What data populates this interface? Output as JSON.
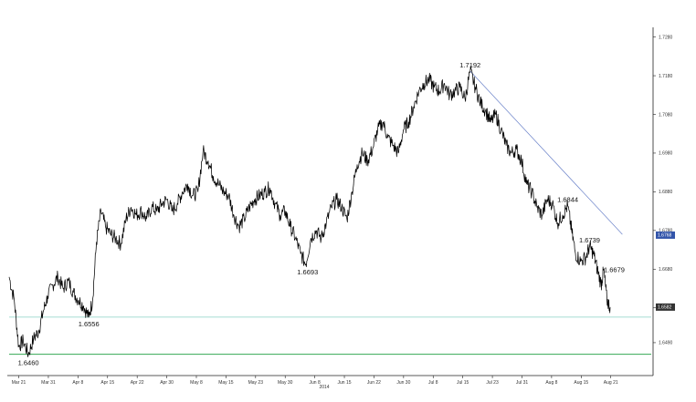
{
  "chart_data": {
    "type": "line",
    "title": "",
    "xlabel": "",
    "ylabel": "",
    "year_label": "2014",
    "x_tick_labels": [
      "Mar 21",
      "Mar 31",
      "Apr 8",
      "Apr 15",
      "Apr 22",
      "Apr 30",
      "May 8",
      "May 15",
      "May 23",
      "May 30",
      "Jun 8",
      "Jun 15",
      "Jun 22",
      "Jun 30",
      "Jul 8",
      "Jul 15",
      "Jul 23",
      "Jul 31",
      "Aug 8",
      "Aug 15",
      "Aug 21"
    ],
    "y_ticks": [
      1.649,
      1.658,
      1.668,
      1.678,
      1.688,
      1.698,
      1.708,
      1.718,
      1.728
    ],
    "y_tick_labels": [
      "1.6490",
      "1.6580",
      "1.6680",
      "1.6780",
      "1.6880",
      "1.6980",
      "1.7080",
      "1.7180",
      "1.7280"
    ],
    "ylim": [
      1.6405,
      1.7305
    ],
    "y_axis_side": "right",
    "grid": false,
    "series": [
      {
        "values": [
          [
            0,
            1.666
          ],
          [
            0.8,
            1.66
          ],
          [
            1.5,
            1.648
          ],
          [
            2.2,
            1.6495
          ],
          [
            3,
            1.646
          ],
          [
            3.8,
            1.65
          ],
          [
            4.6,
            1.652
          ],
          [
            5.3,
            1.657
          ],
          [
            6,
            1.661
          ],
          [
            6.8,
            1.664
          ],
          [
            7.6,
            1.666
          ],
          [
            8.4,
            1.663
          ],
          [
            9.2,
            1.665
          ],
          [
            10,
            1.662
          ],
          [
            10.8,
            1.66
          ],
          [
            11.6,
            1.6585
          ],
          [
            12.4,
            1.6556
          ],
          [
            13,
            1.66
          ],
          [
            13.6,
            1.675
          ],
          [
            14.3,
            1.683
          ],
          [
            15,
            1.679
          ],
          [
            15.8,
            1.677
          ],
          [
            16.6,
            1.676
          ],
          [
            17.4,
            1.6745
          ],
          [
            18.2,
            1.681
          ],
          [
            19,
            1.684
          ],
          [
            19.8,
            1.682
          ],
          [
            20.6,
            1.683
          ],
          [
            21.4,
            1.681
          ],
          [
            22.2,
            1.684
          ],
          [
            23,
            1.683
          ],
          [
            23.8,
            1.685
          ],
          [
            24.6,
            1.686
          ],
          [
            25.4,
            1.683
          ],
          [
            26.2,
            1.685
          ],
          [
            27,
            1.688
          ],
          [
            27.8,
            1.69
          ],
          [
            28.6,
            1.687
          ],
          [
            29.4,
            1.688
          ],
          [
            30.2,
            1.6985
          ],
          [
            31,
            1.696
          ],
          [
            31.8,
            1.692
          ],
          [
            32.6,
            1.69
          ],
          [
            33.4,
            1.688
          ],
          [
            34.2,
            1.687
          ],
          [
            35,
            1.682
          ],
          [
            35.8,
            1.679
          ],
          [
            36.6,
            1.681
          ],
          [
            37.4,
            1.684
          ],
          [
            38.2,
            1.686
          ],
          [
            39,
            1.687
          ],
          [
            39.8,
            1.688
          ],
          [
            40.6,
            1.689
          ],
          [
            41.4,
            1.685
          ],
          [
            42.2,
            1.682
          ],
          [
            43,
            1.683
          ],
          [
            43.8,
            1.679
          ],
          [
            44.6,
            1.676
          ],
          [
            45.4,
            1.672
          ],
          [
            46.2,
            1.6693
          ],
          [
            47,
            1.676
          ],
          [
            47.8,
            1.678
          ],
          [
            48.6,
            1.676
          ],
          [
            49.4,
            1.68
          ],
          [
            50.2,
            1.684
          ],
          [
            51,
            1.686
          ],
          [
            51.8,
            1.684
          ],
          [
            52.6,
            1.681
          ],
          [
            53.4,
            1.688
          ],
          [
            54.2,
            1.695
          ],
          [
            55,
            1.698
          ],
          [
            55.8,
            1.696
          ],
          [
            56.6,
            1.699
          ],
          [
            57.4,
            1.704
          ],
          [
            58.2,
            1.706
          ],
          [
            59,
            1.702
          ],
          [
            59.8,
            1.7
          ],
          [
            60.6,
            1.698
          ],
          [
            61.4,
            1.704
          ],
          [
            62.2,
            1.706
          ],
          [
            63,
            1.71
          ],
          [
            63.8,
            1.714
          ],
          [
            64.6,
            1.716
          ],
          [
            65.4,
            1.717
          ],
          [
            66.2,
            1.715
          ],
          [
            67,
            1.714
          ],
          [
            67.8,
            1.716
          ],
          [
            68.6,
            1.713
          ],
          [
            69.4,
            1.714
          ],
          [
            70.2,
            1.715
          ],
          [
            71,
            1.712
          ],
          [
            71.8,
            1.7192
          ],
          [
            72.6,
            1.715
          ],
          [
            73.4,
            1.711
          ],
          [
            74.2,
            1.709
          ],
          [
            75,
            1.706
          ],
          [
            75.8,
            1.708
          ],
          [
            76.6,
            1.704
          ],
          [
            77.4,
            1.7
          ],
          [
            78.2,
            1.698
          ],
          [
            79,
            1.699
          ],
          [
            79.8,
            1.696
          ],
          [
            80.6,
            1.69
          ],
          [
            81.4,
            1.688
          ],
          [
            82.2,
            1.684
          ],
          [
            83,
            1.682
          ],
          [
            83.8,
            1.686
          ],
          [
            84.6,
            1.685
          ],
          [
            85.4,
            1.68
          ],
          [
            86.2,
            1.682
          ],
          [
            87,
            1.6844
          ],
          [
            87.6,
            1.678
          ],
          [
            88.2,
            1.672
          ],
          [
            89,
            1.67
          ],
          [
            89.8,
            1.671
          ],
          [
            90.4,
            1.6739
          ],
          [
            91,
            1.672
          ],
          [
            91.6,
            1.668
          ],
          [
            92.2,
            1.664
          ],
          [
            92.6,
            1.6679
          ],
          [
            93.1,
            1.66
          ],
          [
            93.6,
            1.6582
          ]
        ]
      }
    ],
    "horizontal_lines": [
      {
        "y": 1.6556,
        "color": "#88d0c4"
      },
      {
        "y": 1.646,
        "color": "#34a853"
      }
    ],
    "trendline": {
      "from": [
        71.8,
        1.7192
      ],
      "to": [
        95.5,
        1.677
      ],
      "color": "#6b83c9"
    },
    "annotations": [
      {
        "text": "1.7192",
        "x": 71.8,
        "y": 1.7192
      },
      {
        "text": "1.6844",
        "x": 87.0,
        "y": 1.6844
      },
      {
        "text": "1.6739",
        "x": 90.4,
        "y": 1.6739
      },
      {
        "text": "1.6693",
        "x": 46.2,
        "y": 1.6693
      },
      {
        "text": "1.6679",
        "x": 92.6,
        "y": 1.6679
      },
      {
        "text": "1.6556",
        "x": 12.4,
        "y": 1.6556
      },
      {
        "text": "1.6460",
        "x": 3.0,
        "y": 1.646
      }
    ],
    "last_value_boxes": [
      {
        "text": "1.6768",
        "y": 1.6768,
        "color": "#3355aa"
      },
      {
        "text": "1.6582",
        "y": 1.6582,
        "color": "#333333"
      }
    ],
    "line_color": "#000000"
  }
}
